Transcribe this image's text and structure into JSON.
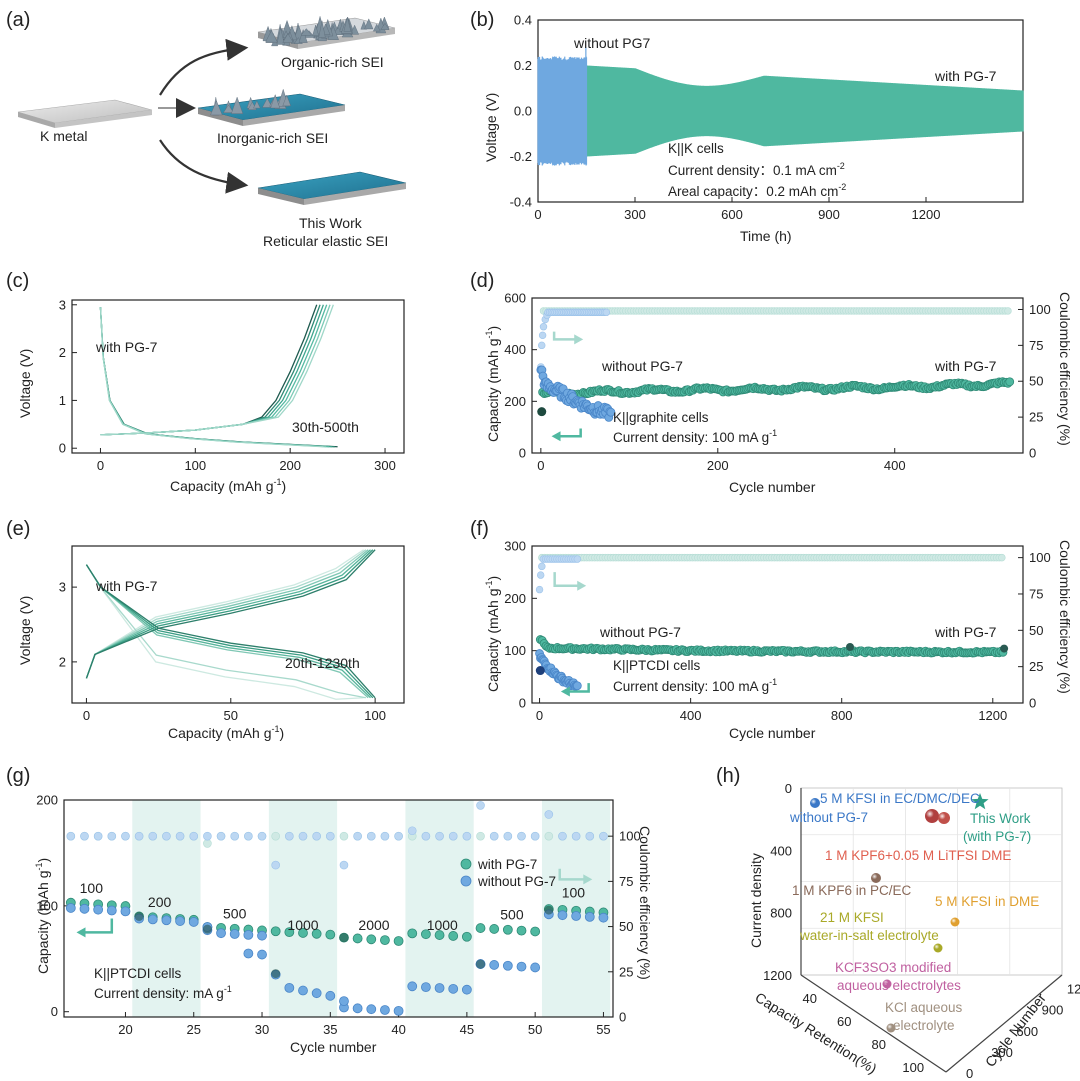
{
  "colors": {
    "teal": "#4fb8a0",
    "blue": "#6fa8e0",
    "lightTeal": "#cfe9e4",
    "lightBlue": "#bcd7f2",
    "dark": "#2a5a52",
    "shade": "#e3f3f0"
  },
  "panels": {
    "a": {
      "letter": "(a)",
      "k_metal": "K metal",
      "organic": "Organic-rich SEI",
      "inorganic": "Inorganic-rich SEI",
      "this_work_1": "This Work",
      "this_work_2": "Reticular elastic  SEI"
    },
    "b": {
      "letter": "(b)",
      "label_without": "without PG7",
      "label_with": "with PG-7",
      "ann1": "K||K cells",
      "ann2": "Current density：0.1 mA cm",
      "ann2_sup": "-2",
      "ann3": "Areal capacity：0.2 mAh cm",
      "ann3_sup": "-2",
      "xlabel": "Time (h)",
      "ylabel": "Voltage (V)"
    },
    "c": {
      "letter": "(c)",
      "label_with": "with PG-7",
      "label_range": "30th-500th",
      "xlabel": "Capacity (mAh g",
      "xlabel_sup": "-1",
      "ylabel": "Voltage (V)"
    },
    "d": {
      "letter": "(d)",
      "label_without": "without PG-7",
      "label_with": "with PG-7",
      "ann1": "K||graphite cells",
      "ann2": "Current density: 100 mA g",
      "ann2_sup": "-1",
      "xlabel": "Cycle number",
      "ylabel": "Capacity (mAh g",
      "ylabel_sup": "-1",
      "y2label": "Coulombic efficiency (%)"
    },
    "e": {
      "letter": "(e)",
      "label_with": "with PG-7",
      "label_range": "20th-1230th",
      "xlabel": "Capacity (mAh g",
      "xlabel_sup": "-1",
      "ylabel": "Voltage (V)"
    },
    "f": {
      "letter": "(f)",
      "label_without": "without PG-7",
      "label_with": "with PG-7",
      "ann1": "K||PTCDI cells",
      "ann2": "Current density: 100 mA g",
      "ann2_sup": "-1",
      "xlabel": "Cycle number",
      "ylabel": "Capacity (mAh g",
      "ylabel_sup": "-1",
      "y2label": "Coulombic efficiency (%)"
    },
    "g": {
      "letter": "(g)",
      "legend_with": "with PG-7",
      "legend_without": "without PG-7",
      "ann1": "K||PTCDI cells",
      "ann2": "Current density: mA g",
      "ann2_sup": "-1",
      "xlabel": "Cycle number",
      "ylabel": "Capacity (mAh g",
      "ylabel_sup": "-1",
      "y2label": "Coulombic efficiency (%)"
    },
    "h": {
      "letter": "(h)",
      "zlabel": "Current density",
      "xlabel": "Capacity Retention(%)",
      "ylabel": "Cycle Number"
    }
  },
  "chart_data": [
    {
      "id": "b",
      "type": "line",
      "title": "",
      "xlabel": "Time (h)",
      "ylabel": "Voltage (V)",
      "xlim": [
        0,
        1500
      ],
      "ylim": [
        -0.4,
        0.4
      ],
      "xticks": [
        0,
        300,
        600,
        900,
        1200
      ],
      "yticks": [
        -0.4,
        -0.2,
        0.0,
        0.2,
        0.4
      ],
      "series": [
        {
          "name": "without PG7",
          "x_range": [
            0,
            150
          ],
          "amplitude": [
            0.22,
            0.24
          ]
        },
        {
          "name": "with PG-7",
          "x_range": [
            150,
            1500
          ],
          "amplitude": [
            0.2,
            0.09
          ]
        }
      ]
    },
    {
      "id": "c",
      "type": "line",
      "xlabel": "Capacity (mAh g-1)",
      "ylabel": "Voltage (V)",
      "xlim": [
        -30,
        320
      ],
      "ylim": [
        -0.1,
        3.1
      ],
      "xticks": [
        0,
        100,
        200,
        300
      ],
      "yticks": [
        0,
        1,
        2,
        3
      ],
      "series": [
        {
          "name": "discharge",
          "x": [
            0,
            3,
            10,
            25,
            50,
            100,
            150,
            200,
            250
          ],
          "y": [
            2.95,
            1.9,
            1.0,
            0.5,
            0.3,
            0.2,
            0.13,
            0.08,
            0.03
          ]
        },
        {
          "name": "charge",
          "x": [
            0,
            50,
            100,
            150,
            170,
            185,
            200,
            215,
            228
          ],
          "y": [
            0.28,
            0.32,
            0.38,
            0.5,
            0.65,
            1.0,
            1.6,
            2.3,
            3.0
          ]
        }
      ]
    },
    {
      "id": "d",
      "type": "scatter",
      "xlabel": "Cycle number",
      "ylabel": "Capacity (mAh g-1)",
      "y2label": "Coulombic efficiency (%)",
      "xlim": [
        -10,
        545
      ],
      "ylim": [
        0,
        600
      ],
      "y2lim": [
        0,
        108
      ],
      "xticks": [
        0,
        200,
        400
      ],
      "yticks": [
        0,
        200,
        400,
        600
      ],
      "y2ticks": [
        0,
        25,
        50,
        75,
        100
      ],
      "series": [
        {
          "name": "with PG-7 capacity",
          "trend": [
            [
              5,
              230
            ],
            [
              100,
              240
            ],
            [
              200,
              245
            ],
            [
              300,
              250
            ],
            [
              400,
              255
            ],
            [
              530,
              268
            ]
          ]
        },
        {
          "name": "without PG-7 capacity",
          "trend": [
            [
              0,
              330
            ],
            [
              5,
              260
            ],
            [
              20,
              240
            ],
            [
              40,
              200
            ],
            [
              60,
              170
            ],
            [
              80,
              150
            ]
          ]
        },
        {
          "name": "with PG-7 CE",
          "value": 99
        },
        {
          "name": "without PG-7 CE",
          "value": 98
        }
      ]
    },
    {
      "id": "e",
      "type": "line",
      "xlabel": "Capacity (mAh g-1)",
      "ylabel": "Voltage (V)",
      "xlim": [
        -5,
        110
      ],
      "ylim": [
        1.45,
        3.55
      ],
      "xticks": [
        0,
        50,
        100
      ],
      "yticks": [
        2,
        3
      ],
      "series": [
        {
          "name": "discharge",
          "x": [
            0,
            5,
            25,
            50,
            75,
            90,
            100
          ],
          "y": [
            3.3,
            3.0,
            2.45,
            2.25,
            2.12,
            1.95,
            1.52
          ]
        },
        {
          "name": "charge",
          "x": [
            0,
            3,
            25,
            50,
            75,
            90,
            100
          ],
          "y": [
            1.78,
            2.1,
            2.45,
            2.65,
            2.88,
            3.1,
            3.5
          ]
        }
      ]
    },
    {
      "id": "f",
      "type": "scatter",
      "xlabel": "Cycle number",
      "ylabel": "Capacity (mAh g-1)",
      "y2label": "Coulombic efficiency (%)",
      "xlim": [
        -20,
        1280
      ],
      "ylim": [
        0,
        300
      ],
      "y2lim": [
        0,
        108
      ],
      "xticks": [
        0,
        400,
        800,
        1200
      ],
      "yticks": [
        0,
        100,
        200,
        300
      ],
      "y2ticks": [
        0,
        25,
        50,
        75,
        100
      ],
      "series": [
        {
          "name": "with PG-7 capacity",
          "trend": [
            [
              0,
              125
            ],
            [
              20,
              105
            ],
            [
              400,
              100
            ],
            [
              800,
              98
            ],
            [
              1230,
              97
            ]
          ]
        },
        {
          "name": "without PG-7 capacity",
          "trend": [
            [
              0,
              90
            ],
            [
              20,
              70
            ],
            [
              50,
              50
            ],
            [
              100,
              30
            ]
          ]
        },
        {
          "name": "with PG-7 CE",
          "value": 100
        },
        {
          "name": "without PG-7 CE",
          "value": 99
        }
      ]
    },
    {
      "id": "g",
      "type": "scatter",
      "xlabel": "Cycle number",
      "ylabel": "Capacity (mAh g-1)",
      "y2label": "Coulombic efficiency (%)",
      "xlim": [
        15.5,
        55.7
      ],
      "ylim": [
        -5,
        200
      ],
      "y2lim": [
        0,
        120
      ],
      "xticks": [
        20,
        25,
        30,
        35,
        40,
        45,
        50,
        55
      ],
      "yticks": [
        0,
        100,
        200
      ],
      "y2ticks": [
        0,
        25,
        50,
        75,
        100
      ],
      "rate_labels": [
        "100",
        "200",
        "500",
        "1000",
        "2000",
        "1000",
        "500",
        "100"
      ],
      "segments": [
        [
          16,
          20
        ],
        [
          21,
          25
        ],
        [
          26,
          30
        ],
        [
          31,
          35
        ],
        [
          36,
          40
        ],
        [
          41,
          45
        ],
        [
          46,
          50
        ],
        [
          51,
          55
        ]
      ],
      "series": [
        {
          "name": "with PG-7",
          "values": [
            103,
            90,
            80,
            76,
            70,
            74,
            79,
            97
          ]
        },
        {
          "name": "without PG-7",
          "values": [
            98,
            88,
            75,
            25,
            4,
            24,
            45,
            92
          ]
        }
      ]
    },
    {
      "id": "h",
      "type": "scatter",
      "xlabel": "Capacity Retention(%)",
      "ylabel": "Cycle Number",
      "zlabel": "Current density",
      "zticks": [
        0,
        400,
        800,
        1200
      ],
      "xticks": [
        40,
        60,
        80,
        100
      ],
      "yticks": [
        0,
        300,
        600,
        900,
        1200
      ],
      "points": [
        {
          "label": "5 M KFSI in EC/DMC/DEC",
          "color": "#3b78c7"
        },
        {
          "label": "without PG-7",
          "color": "#3b78c7"
        },
        {
          "label": "This Work",
          "color": "#2e9e86"
        },
        {
          "label": "(with PG-7)",
          "color": "#2e9e86"
        },
        {
          "label": "1 M KPF6+0.05 M LiTFSI DME",
          "color": "#e06050"
        },
        {
          "label": "1 M KPF6 in PC/EC",
          "color": "#8a6a5a"
        },
        {
          "label": "5 M KFSI in DME",
          "color": "#e0a030"
        },
        {
          "label": "21 M KFSI",
          "color": "#a9a928"
        },
        {
          "label": "water-in-salt electrolyte",
          "color": "#a9a928"
        },
        {
          "label": "KCF3SO3 modified",
          "color": "#c060a0"
        },
        {
          "label": "aqueous electrolytes",
          "color": "#c060a0"
        },
        {
          "label": "KCl aqueous",
          "color": "#a09080"
        },
        {
          "label": "electrolyte",
          "color": "#a09080"
        }
      ]
    }
  ]
}
